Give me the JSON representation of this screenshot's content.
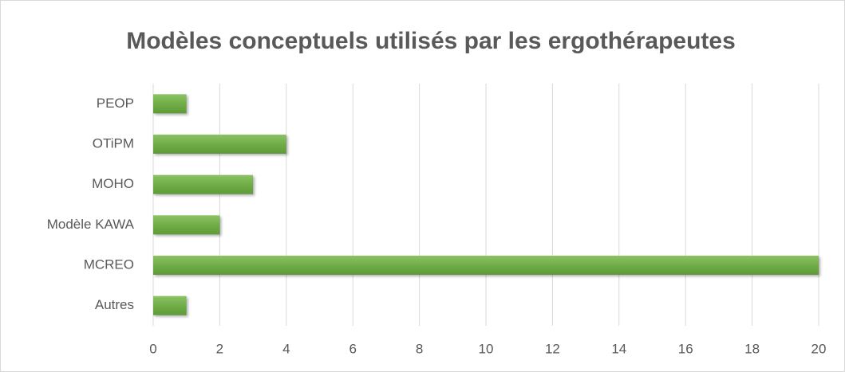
{
  "chart_data": {
    "type": "bar",
    "orientation": "horizontal",
    "title": "Modèles conceptuels utilisés par les ergothérapeutes",
    "categories": [
      "PEOP",
      "OTiPM",
      "MOHO",
      "Modèle KAWA",
      "MCREO",
      "Autres"
    ],
    "values": [
      1,
      4,
      3,
      2,
      20,
      1
    ],
    "color": "#70ad47",
    "xlim": [
      0,
      20
    ],
    "xticks": [
      0,
      2,
      4,
      6,
      8,
      10,
      12,
      14,
      16,
      18,
      20
    ],
    "grid": true
  }
}
